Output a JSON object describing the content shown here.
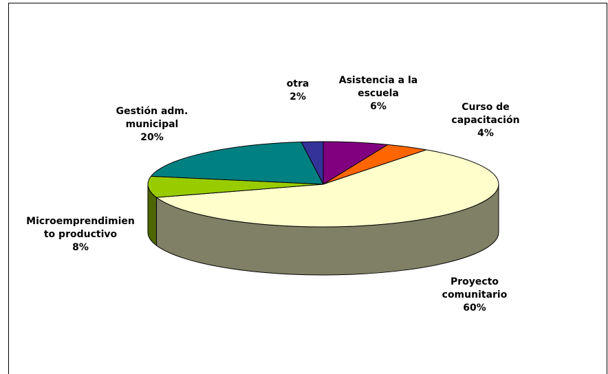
{
  "chart_data": {
    "type": "pie3d",
    "categories": [
      "Asistencia a la escuela",
      "Curso de capacitación",
      "Proyecto comunitario",
      "Microemprendimiento productivo",
      "Gestión adm. municipal",
      "otra"
    ],
    "values": [
      6,
      4,
      60,
      8,
      20,
      2
    ],
    "value_labels": [
      "6%",
      "4%",
      "60%",
      "8%",
      "20%",
      "2%"
    ],
    "colors": [
      "#800080",
      "#ff6600",
      "#ffffcc",
      "#99cc00",
      "#008080",
      "#333399"
    ]
  }
}
